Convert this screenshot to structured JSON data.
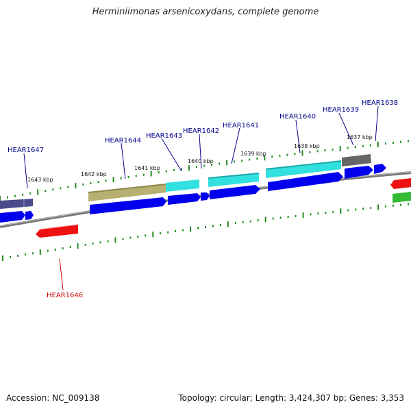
{
  "title": "Herminiimonas arsenicoxydans, complete genome",
  "footer": {
    "accession": "Accession: NC_009138",
    "topology": "Topology: circular; Length: 3,424,307 bp; Genes: 3,353"
  },
  "colors": {
    "backbone": "#888888",
    "ticks": "#228b22",
    "label_fwd": "#00008b",
    "label_rev": "#cc0000"
  },
  "kbp_labels": [
    "1643 kbp",
    "1642 kbp",
    "1641 kbp",
    "1640 kbp",
    "1639 kbp",
    "1638 kbp",
    "1637 kbp"
  ],
  "gene_labels": [
    {
      "name": "HEAR1647",
      "strand": "fwd"
    },
    {
      "name": "HEAR1644",
      "strand": "fwd"
    },
    {
      "name": "HEAR1643",
      "strand": "fwd"
    },
    {
      "name": "HEAR1642",
      "strand": "fwd"
    },
    {
      "name": "HEAR1641",
      "strand": "fwd"
    },
    {
      "name": "HEAR1640",
      "strand": "fwd"
    },
    {
      "name": "HEAR1639",
      "strand": "fwd"
    },
    {
      "name": "HEAR1638",
      "strand": "fwd"
    },
    {
      "name": "HEAR1646",
      "strand": "rev"
    }
  ],
  "features": [
    {
      "id": "f-hear1647-cog",
      "color": "#4b4b8b",
      "track": "cog"
    },
    {
      "id": "f-hear1644-cog",
      "color": "#b8b070",
      "track": "cog"
    },
    {
      "id": "f-hear1643-cog",
      "color": "#33e0e0",
      "track": "cog"
    },
    {
      "id": "f-hear1641-cog",
      "color": "#33e0e0",
      "track": "cog"
    },
    {
      "id": "f-hear1640-cog",
      "color": "#33e0e0",
      "track": "cog"
    },
    {
      "id": "f-hear1639-cog",
      "color": "#666666",
      "track": "cog"
    },
    {
      "id": "f-rev-red-right",
      "color": "#ee1111",
      "track": "cog"
    },
    {
      "id": "f-rev-green-right",
      "color": "#33bb33",
      "track": "cog"
    },
    {
      "id": "f-hear1646",
      "color": "#ee1111",
      "track": "rev"
    }
  ]
}
